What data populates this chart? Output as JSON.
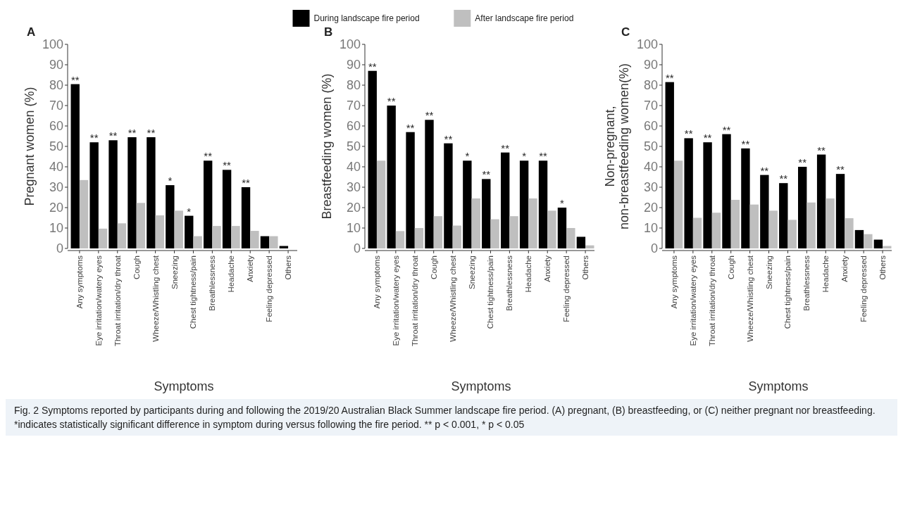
{
  "chart_data": [
    {
      "type": "bar",
      "title": "A",
      "ylabel": "Pregnant women (%)",
      "xlabel": "Symptoms",
      "legend": "top",
      "ylim": [
        0,
        100
      ],
      "yticks": [
        0,
        10,
        20,
        30,
        40,
        50,
        60,
        70,
        80,
        90,
        100
      ],
      "grid": false,
      "categories": [
        "Any symptoms",
        "Eye irritation/watery eyes",
        "Throat irritation/dry throat",
        "Cough",
        "Wheeze/Whistling chest",
        "Sneezing",
        "Chest tightness/pain",
        "Breathlessness",
        "Headache",
        "Anxiety",
        "Feeling depressed",
        "Others"
      ],
      "series": [
        {
          "name": "During landscape fire period",
          "color": "#000000",
          "values": [
            80.5,
            52,
            53,
            54.5,
            54.5,
            31,
            16,
            43,
            38.5,
            30,
            6,
            1.2
          ]
        },
        {
          "name": "After landscape fire period",
          "color": "#bfbfbf",
          "values": [
            33.5,
            9.7,
            12.3,
            22.3,
            16.2,
            18.5,
            6,
            11,
            11,
            8.6,
            6,
            0
          ]
        }
      ],
      "annotations": [
        {
          "text": "**",
          "x": "Any symptoms",
          "y": 80.5
        },
        {
          "text": "**",
          "x": "Eye irritation/watery eyes",
          "y": 52
        },
        {
          "text": "**",
          "x": "Throat irritation/dry throat",
          "y": 53
        },
        {
          "text": "**",
          "x": "Cough",
          "y": 54.5
        },
        {
          "text": "**",
          "x": "Wheeze/Whistling chest",
          "y": 54.5
        },
        {
          "text": "*",
          "x": "Sneezing",
          "y": 31
        },
        {
          "text": "*",
          "x": "Chest tightness/pain",
          "y": 16
        },
        {
          "text": "**",
          "x": "Breathlessness",
          "y": 43
        },
        {
          "text": "**",
          "x": "Headache",
          "y": 38.5
        },
        {
          "text": "**",
          "x": "Anxiety",
          "y": 30
        },
        "Fig. 2  Symptoms reported by participants during and following the 2019/20 Australian Black Summer landscape fire period. (A) pregnant, (B) breastfeeding, or (C) neither pregnant nor breastfeeding. *indicates statistically significant difference in symptom during versus following the fire period. ** p < 0.001, * p < 0.05"
      ]
    },
    {
      "type": "bar",
      "title": "B",
      "ylabel": "Breastfeeding women (%)",
      "xlabel": "Symptoms",
      "ylim": [
        0,
        100
      ],
      "yticks": [
        0,
        10,
        20,
        30,
        40,
        50,
        60,
        70,
        80,
        90,
        100
      ],
      "grid": false,
      "categories": [
        "Any symptoms",
        "Eye irritation/watery eyes",
        "Throat irritation/dry throat",
        "Cough",
        "Wheeze/Whistling chest",
        "Sneezing",
        "Chest tightness/pain",
        "Breathlessness",
        "Headache",
        "Anxiety",
        "Feeling depressed",
        "Others"
      ],
      "series": [
        {
          "color": "#000000",
          "values": [
            87,
            70,
            57,
            63,
            51.5,
            43,
            34,
            47,
            43,
            43,
            20,
            5.7
          ]
        },
        {
          "color": "#bfbfbf",
          "values": [
            43,
            8.5,
            10,
            15.8,
            11.2,
            24.5,
            14.3,
            15.8,
            24.5,
            18.5,
            10,
            1.5
          ]
        }
      ],
      "annotations": [
        {
          "text": "**",
          "x": "Any symptoms",
          "y": 87
        },
        {
          "text": "**",
          "x": "Eye irritation/watery eyes",
          "y": 70
        },
        {
          "text": "**",
          "x": "Throat irritation/dry throat",
          "y": 57
        },
        {
          "text": "**",
          "x": "Cough",
          "y": 63
        },
        {
          "text": "**",
          "x": "Wheeze/Whistling chest",
          "y": 51.5
        },
        {
          "text": "*",
          "x": "Sneezing",
          "y": 43
        },
        {
          "text": "**",
          "x": "Chest tightness/pain",
          "y": 34
        },
        {
          "text": "**",
          "x": "Breathlessness",
          "y": 47
        },
        {
          "text": "*",
          "x": "Headache",
          "y": 43
        },
        {
          "text": "**",
          "x": "Anxiety",
          "y": 43
        },
        {
          "text": "*",
          "x": "Feeling depressed",
          "y": 20
        }
      ]
    },
    {
      "type": "bar",
      "title": "C",
      "ylabel": "Non-pregnant, non-breastfeeding women(%)",
      "xlabel": "Symptoms",
      "ylim": [
        0,
        100
      ],
      "yticks": [
        0,
        10,
        20,
        30,
        40,
        50,
        60,
        70,
        80,
        90,
        100
      ],
      "grid": false,
      "categories": [
        "Any symptoms",
        "Eye irritation/watery eyes",
        "Throat irritation/dry throat",
        "Cough",
        "Wheeze/Whistling chest",
        "Sneezing",
        "Chest tightness/pain",
        "Breathlessness",
        "Headache",
        "Anxiety",
        "Feeling depressed",
        "Others"
      ],
      "series": [
        {
          "color": "#000000",
          "values": [
            81.5,
            54,
            52,
            56,
            49,
            36,
            32,
            40,
            46,
            36.5,
            9,
            4.3
          ]
        },
        {
          "color": "#bfbfbf",
          "values": [
            43,
            15,
            17.5,
            23.8,
            21.5,
            18.5,
            14,
            22.5,
            24.5,
            14.8,
            7,
            1.2
          ]
        }
      ],
      "annotations": [
        {
          "text": "**",
          "x": "Any symptoms",
          "y": 81.5
        },
        {
          "text": "**",
          "x": "Eye irritation/watery eyes",
          "y": 54
        },
        {
          "text": "**",
          "x": "Throat irritation/dry throat",
          "y": 52
        },
        {
          "text": "**",
          "x": "Cough",
          "y": 56
        },
        {
          "text": "**",
          "x": "Wheeze/Whistling chest",
          "y": 49
        },
        {
          "text": "**",
          "x": "Sneezing",
          "y": 36
        },
        {
          "text": "**",
          "x": "Chest tightness/pain",
          "y": 32
        },
        {
          "text": "**",
          "x": "Breathlessness",
          "y": 40
        },
        {
          "text": "**",
          "x": "Headache",
          "y": 46
        },
        {
          "text": "**",
          "x": "Anxiety",
          "y": 36.5
        }
      ]
    }
  ]
}
